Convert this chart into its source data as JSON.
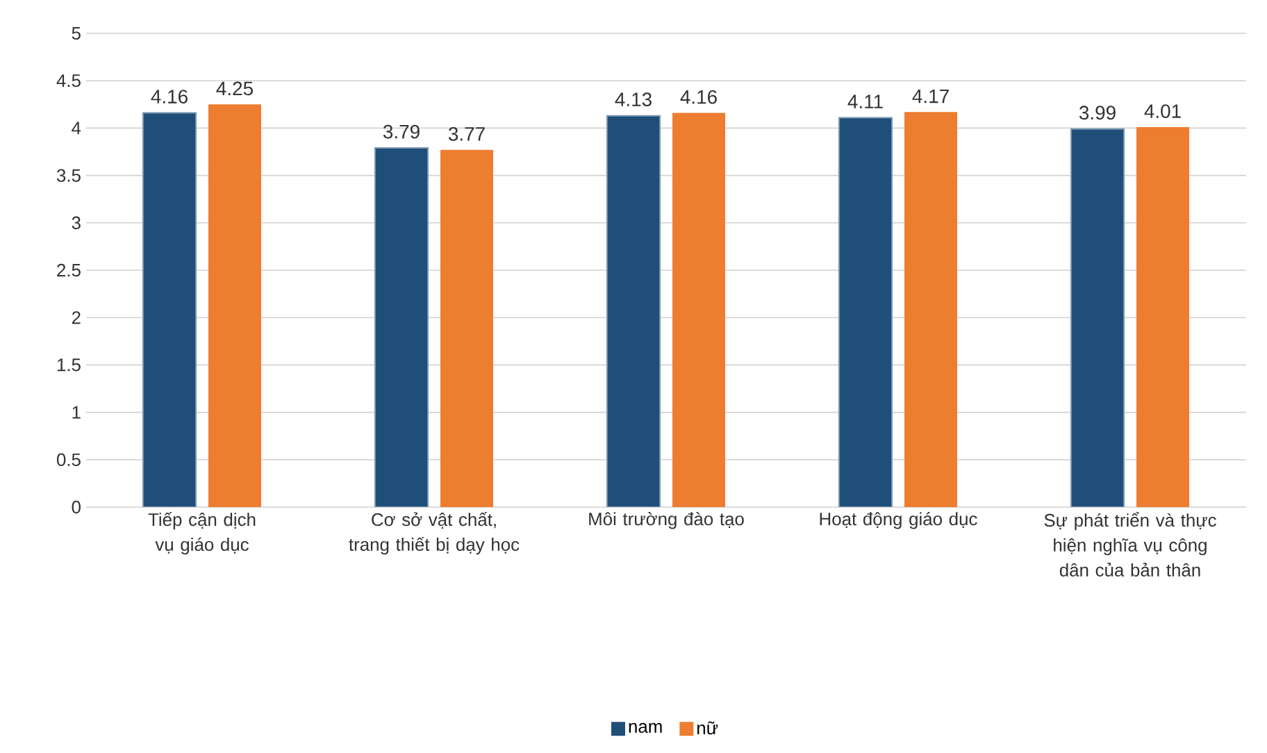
{
  "chart_data": {
    "type": "bar",
    "categories": [
      "Tiếp cận dịch vụ giáo dục",
      "Cơ sở vật chất, trang thiết bị dạy học",
      "Môi trường đào tạo",
      "Hoạt động giáo dục",
      "Sự phát triển và thực hiện nghĩa vụ công dân của bản thân"
    ],
    "series": [
      {
        "name": "nam",
        "color": "#1f4e79",
        "values": [
          4.16,
          3.79,
          4.13,
          4.11,
          3.99
        ]
      },
      {
        "name": "nữ",
        "color": "#ed7d31",
        "values": [
          4.25,
          3.77,
          4.16,
          4.17,
          4.01
        ]
      }
    ],
    "ylim": [
      0,
      5
    ],
    "yticks": [
      0,
      0.5,
      1,
      1.5,
      2,
      2.5,
      3,
      3.5,
      4,
      4.5,
      5
    ],
    "grid": "y",
    "legend": "bottom",
    "data_labels": true
  }
}
